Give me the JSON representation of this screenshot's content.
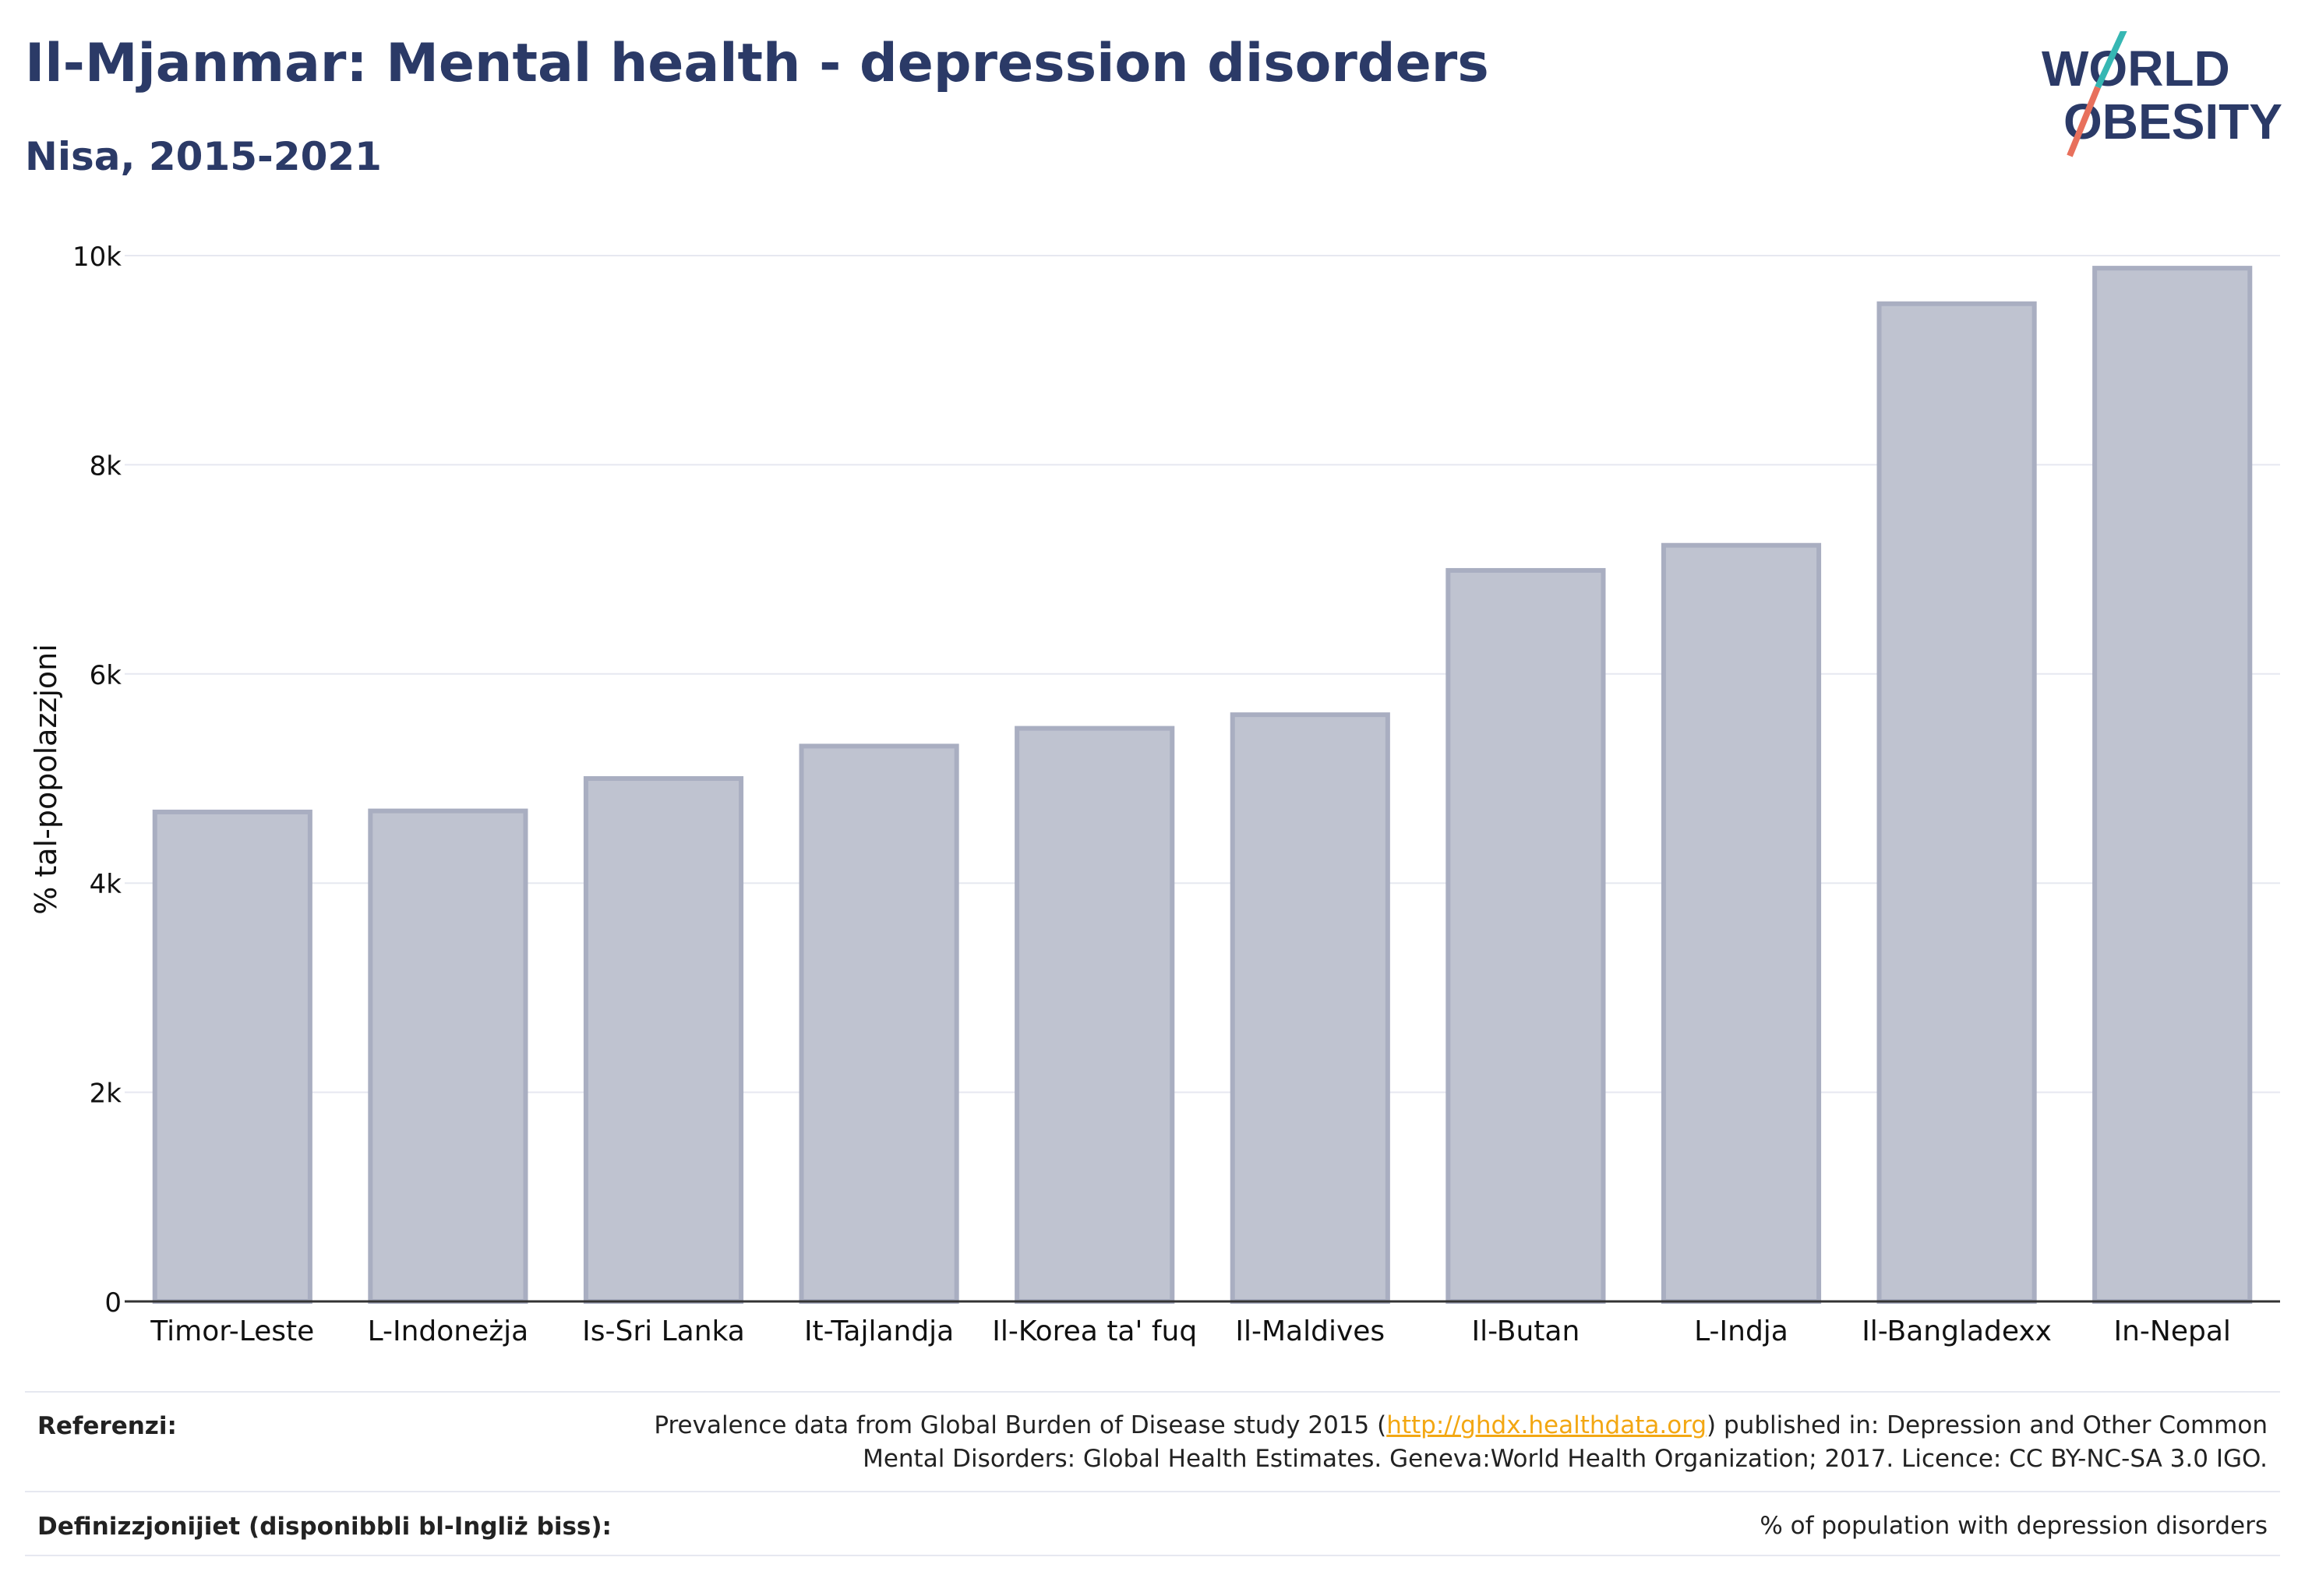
{
  "header": {
    "title": "Il-Mjanmar: Mental health - depression disorders",
    "subtitle": "Nisa, 2015-2021"
  },
  "logo": {
    "line1": "WORLD",
    "line2": "OBESITY"
  },
  "chart_data": {
    "type": "bar",
    "categories": [
      "Timor-Leste",
      "L-Indoneżja",
      "Is-Sri Lanka",
      "It-Tajlandja",
      "Il-Korea ta' fuq",
      "Il-Maldives",
      "Il-Butan",
      "L-Indja",
      "Il-Bangladexx",
      "In-Nepal"
    ],
    "values": [
      4680,
      4690,
      5000,
      5310,
      5480,
      5610,
      6990,
      7230,
      9540,
      9880
    ],
    "ylabel": "% tal-popolazzjoni",
    "ylim": [
      0,
      10000
    ],
    "yticks": [
      0,
      2000,
      4000,
      6000,
      8000,
      10000
    ],
    "ytick_labels": [
      "0",
      "2k",
      "4k",
      "6k",
      "8k",
      "10k"
    ],
    "grid": true,
    "bar_color": "#bfc3d0",
    "bar_border_color": "#a9aec1"
  },
  "footer": {
    "references_label": "Referenzi:",
    "references_pre": "Prevalence data from Global Burden of Disease study 2015 (",
    "references_link": "http://ghdx.healthdata.org",
    "references_post": ") published in: Depression and Other Common",
    "references_line2": "Mental Disorders: Global Health Estimates. Geneva:World Health Organization; 2017. Licence: CC BY-NC-SA 3.0 IGO.",
    "definitions_label": "Definizzjonijiet (disponibbli bl-Ingliż biss):",
    "definitions_value": "% of population with depression disorders"
  }
}
